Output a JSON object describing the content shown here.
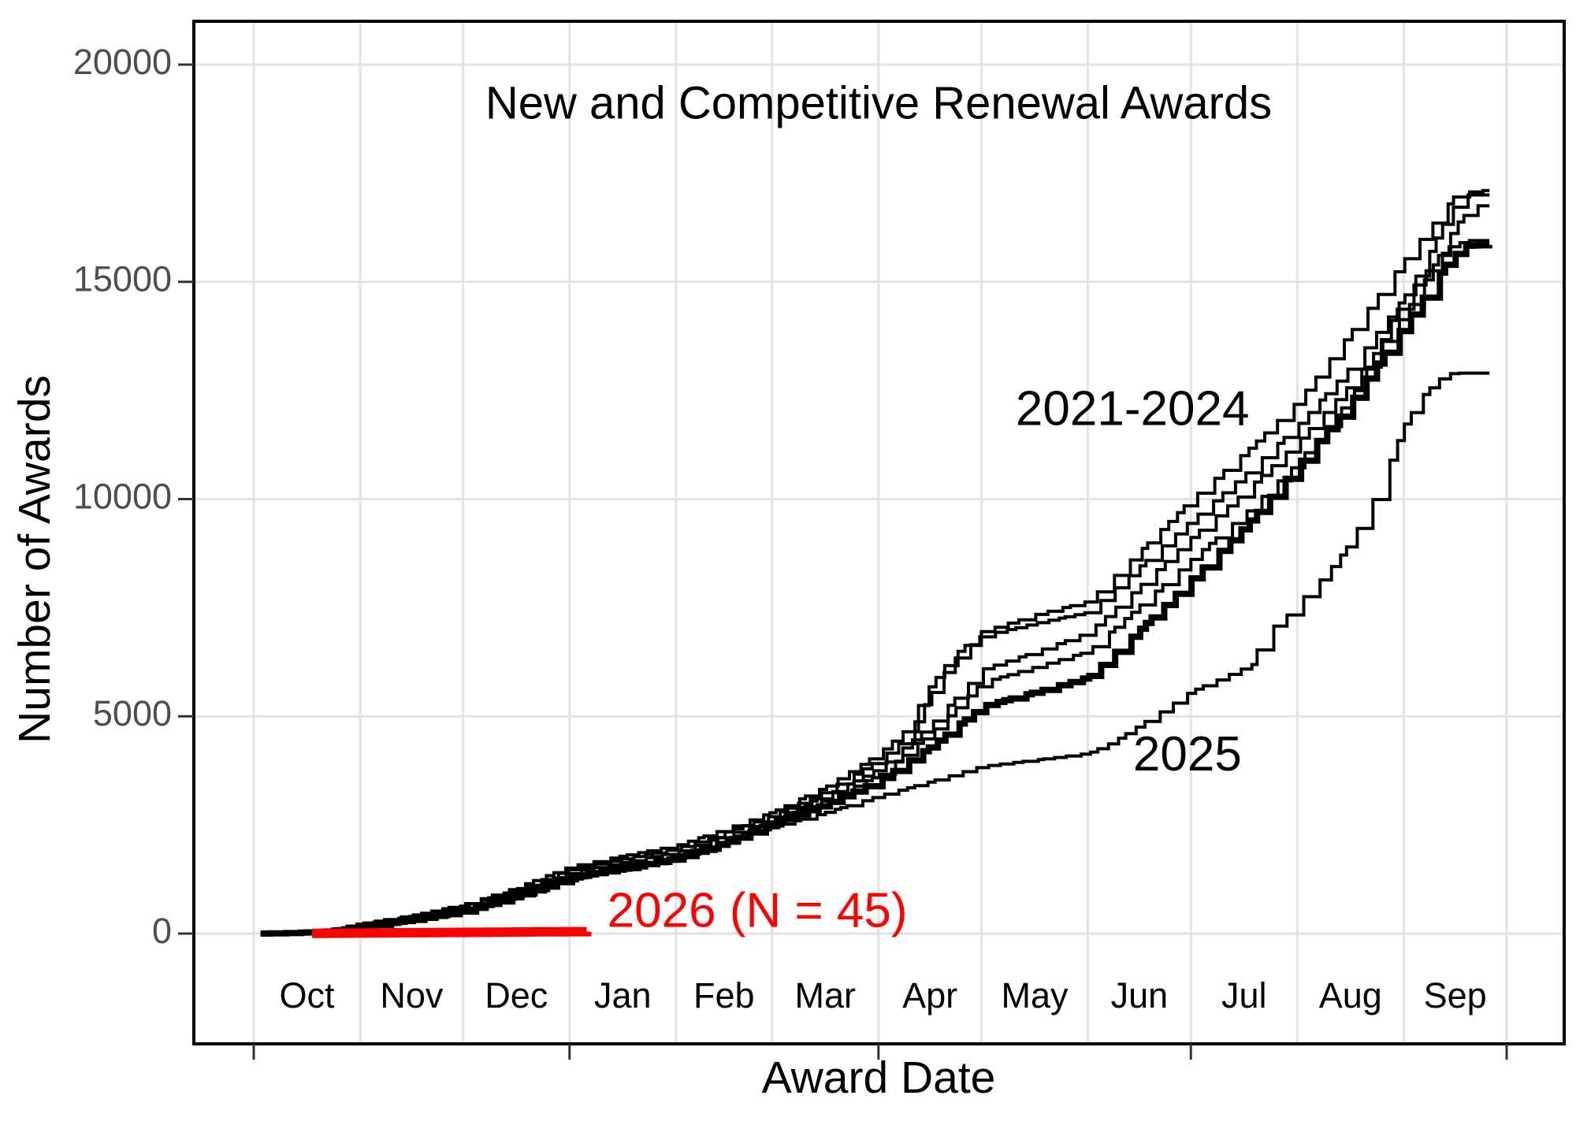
{
  "chart": {
    "title": "New and Competitive Renewal Awards",
    "x_axis_title": "Award Date",
    "y_axis_title": "Number of Awards"
  },
  "chart_data": {
    "type": "line",
    "title": "New and Competitive Renewal Awards",
    "xlabel": "Award Date",
    "ylabel": "Number of Awards",
    "x_unit": "days since Oct 1 (federal fiscal year)",
    "x_range_days": [
      0,
      365
    ],
    "ylim": [
      0,
      20000
    ],
    "grid": true,
    "legend": "none (direct line labels)",
    "y_ticks": [
      0,
      5000,
      10000,
      15000,
      20000
    ],
    "x_quarter_tick_days": [
      0,
      92,
      182,
      273,
      365
    ],
    "month_boundary_days": [
      0,
      31,
      61,
      92,
      123,
      151,
      182,
      212,
      243,
      273,
      304,
      335,
      365
    ],
    "month_labels": [
      {
        "label": "Oct",
        "mid_day": 15.5
      },
      {
        "label": "Nov",
        "mid_day": 46
      },
      {
        "label": "Dec",
        "mid_day": 76.5
      },
      {
        "label": "Jan",
        "mid_day": 107.5
      },
      {
        "label": "Feb",
        "mid_day": 137
      },
      {
        "label": "Mar",
        "mid_day": 166.5
      },
      {
        "label": "Apr",
        "mid_day": 197
      },
      {
        "label": "May",
        "mid_day": 227.5
      },
      {
        "label": "Jun",
        "mid_day": 258
      },
      {
        "label": "Jul",
        "mid_day": 288.5
      },
      {
        "label": "Aug",
        "mid_day": 319.5
      },
      {
        "label": "Sep",
        "mid_day": 350
      }
    ],
    "annotations": [
      {
        "text": "2021-2024",
        "x_day": 256,
        "y_value": 12000,
        "color": "#000000",
        "anchor": "middle",
        "font_size": 62
      },
      {
        "text": "2025",
        "x_day": 272,
        "y_value": 4050,
        "color": "#000000",
        "anchor": "middle",
        "font_size": 62
      },
      {
        "text": "2026 (N = 45)",
        "x_day": 103,
        "y_value": 450,
        "color": "#FF0000",
        "anchor": "start",
        "font_size": 62
      }
    ],
    "series": [
      {
        "name": "2021-2024 year line 1",
        "group_label": "2021-2024",
        "color": "#000000",
        "stroke_width": 4,
        "end_value": 17100,
        "points": [
          [
            2,
            0
          ],
          [
            12,
            30
          ],
          [
            22,
            90
          ],
          [
            31,
            230
          ],
          [
            46,
            420
          ],
          [
            61,
            670
          ],
          [
            76,
            1050
          ],
          [
            92,
            1540
          ],
          [
            108,
            1800
          ],
          [
            123,
            2030
          ],
          [
            137,
            2400
          ],
          [
            151,
            2800
          ],
          [
            167,
            3400
          ],
          [
            182,
            4150
          ],
          [
            190,
            4700
          ],
          [
            196,
            5600
          ],
          [
            203,
            6350
          ],
          [
            212,
            6950
          ],
          [
            228,
            7350
          ],
          [
            243,
            7650
          ],
          [
            258,
            8800
          ],
          [
            273,
            10000
          ],
          [
            289,
            11100
          ],
          [
            304,
            12250
          ],
          [
            320,
            13900
          ],
          [
            335,
            15500
          ],
          [
            343,
            16300
          ],
          [
            350,
            17000
          ],
          [
            356,
            17100
          ],
          [
            360,
            17100
          ]
        ]
      },
      {
        "name": "2021-2024 year line 2",
        "group_label": "2021-2024",
        "color": "#000000",
        "stroke_width": 4,
        "end_value": 17000,
        "points": [
          [
            2,
            0
          ],
          [
            12,
            25
          ],
          [
            22,
            80
          ],
          [
            31,
            210
          ],
          [
            46,
            400
          ],
          [
            61,
            640
          ],
          [
            76,
            1010
          ],
          [
            92,
            1480
          ],
          [
            108,
            1730
          ],
          [
            123,
            1960
          ],
          [
            137,
            2330
          ],
          [
            151,
            2720
          ],
          [
            167,
            3300
          ],
          [
            182,
            4000
          ],
          [
            190,
            4500
          ],
          [
            196,
            5350
          ],
          [
            203,
            6250
          ],
          [
            212,
            6860
          ],
          [
            228,
            7150
          ],
          [
            243,
            7400
          ],
          [
            258,
            8450
          ],
          [
            273,
            9510
          ],
          [
            289,
            10600
          ],
          [
            304,
            11700
          ],
          [
            320,
            13100
          ],
          [
            335,
            14650
          ],
          [
            342,
            15600
          ],
          [
            348,
            16600
          ],
          [
            353,
            17000
          ],
          [
            360,
            17000
          ]
        ]
      },
      {
        "name": "2021-2024 year line 3",
        "group_label": "2021-2024",
        "color": "#000000",
        "stroke_width": 4,
        "end_value": 16750,
        "points": [
          [
            2,
            0
          ],
          [
            12,
            20
          ],
          [
            22,
            70
          ],
          [
            31,
            190
          ],
          [
            46,
            370
          ],
          [
            61,
            600
          ],
          [
            76,
            950
          ],
          [
            92,
            1410
          ],
          [
            108,
            1650
          ],
          [
            123,
            1880
          ],
          [
            137,
            2250
          ],
          [
            151,
            2650
          ],
          [
            167,
            3200
          ],
          [
            182,
            3800
          ],
          [
            197,
            4800
          ],
          [
            212,
            6080
          ],
          [
            228,
            6500
          ],
          [
            243,
            6930
          ],
          [
            258,
            8000
          ],
          [
            273,
            9115
          ],
          [
            289,
            10200
          ],
          [
            304,
            11320
          ],
          [
            320,
            12700
          ],
          [
            335,
            14260
          ],
          [
            343,
            15300
          ],
          [
            350,
            16300
          ],
          [
            355,
            16750
          ],
          [
            360,
            16750
          ]
        ]
      },
      {
        "name": "2021-2024 year line 4",
        "group_label": "2021-2024",
        "color": "#000000",
        "stroke_width": 4,
        "end_value": 15950,
        "points": [
          [
            2,
            0
          ],
          [
            12,
            18
          ],
          [
            22,
            60
          ],
          [
            31,
            170
          ],
          [
            46,
            340
          ],
          [
            61,
            560
          ],
          [
            76,
            900
          ],
          [
            92,
            1350
          ],
          [
            108,
            1580
          ],
          [
            123,
            1800
          ],
          [
            137,
            2150
          ],
          [
            151,
            2600
          ],
          [
            167,
            3100
          ],
          [
            182,
            3650
          ],
          [
            197,
            4600
          ],
          [
            212,
            5780
          ],
          [
            228,
            6150
          ],
          [
            243,
            6500
          ],
          [
            258,
            7550
          ],
          [
            273,
            8610
          ],
          [
            289,
            9700
          ],
          [
            304,
            10850
          ],
          [
            320,
            12400
          ],
          [
            335,
            14650
          ],
          [
            342,
            15300
          ],
          [
            348,
            15800
          ],
          [
            353,
            15950
          ],
          [
            360,
            15950
          ]
        ]
      },
      {
        "name": "2021-2024 thick line",
        "group_label": "2021-2024",
        "color": "#000000",
        "stroke_width": 8,
        "end_value": 15850,
        "points": [
          [
            2,
            0
          ],
          [
            12,
            15
          ],
          [
            22,
            50
          ],
          [
            31,
            150
          ],
          [
            46,
            310
          ],
          [
            61,
            520
          ],
          [
            76,
            850
          ],
          [
            92,
            1280
          ],
          [
            108,
            1510
          ],
          [
            123,
            1730
          ],
          [
            137,
            2080
          ],
          [
            151,
            2530
          ],
          [
            167,
            3000
          ],
          [
            182,
            3520
          ],
          [
            197,
            4300
          ],
          [
            212,
            5230
          ],
          [
            228,
            5570
          ],
          [
            243,
            5900
          ],
          [
            258,
            7000
          ],
          [
            273,
            8160
          ],
          [
            289,
            9400
          ],
          [
            304,
            10780
          ],
          [
            320,
            12300
          ],
          [
            335,
            14000
          ],
          [
            342,
            14800
          ],
          [
            348,
            15500
          ],
          [
            353,
            15830
          ],
          [
            360,
            15850
          ]
        ]
      },
      {
        "name": "2025",
        "group_label": "2025",
        "color": "#000000",
        "stroke_width": 4,
        "end_value": 12900,
        "points": [
          [
            2,
            0
          ],
          [
            12,
            15
          ],
          [
            22,
            45
          ],
          [
            31,
            140
          ],
          [
            46,
            290
          ],
          [
            61,
            490
          ],
          [
            76,
            820
          ],
          [
            92,
            1250
          ],
          [
            108,
            1480
          ],
          [
            123,
            1700
          ],
          [
            137,
            2080
          ],
          [
            151,
            2450
          ],
          [
            167,
            2800
          ],
          [
            182,
            3170
          ],
          [
            197,
            3500
          ],
          [
            212,
            3850
          ],
          [
            228,
            4000
          ],
          [
            243,
            4150
          ],
          [
            250,
            4400
          ],
          [
            258,
            4800
          ],
          [
            266,
            5200
          ],
          [
            273,
            5580
          ],
          [
            281,
            5850
          ],
          [
            288,
            6100
          ],
          [
            291,
            6200
          ],
          [
            294,
            6950
          ],
          [
            299,
            7150
          ],
          [
            304,
            7600
          ],
          [
            312,
            8250
          ],
          [
            318,
            8850
          ],
          [
            325,
            9800
          ],
          [
            330,
            10700
          ],
          [
            335,
            11700
          ],
          [
            340,
            12350
          ],
          [
            345,
            12750
          ],
          [
            349,
            12900
          ],
          [
            360,
            12900
          ]
        ]
      },
      {
        "name": "2026",
        "group_label": "2026 (N = 45)",
        "color": "#FF0000",
        "stroke_width": 12,
        "end_value": 45,
        "points": [
          [
            17,
            5
          ],
          [
            30,
            12
          ],
          [
            45,
            20
          ],
          [
            61,
            28
          ],
          [
            75,
            36
          ],
          [
            90,
            43
          ],
          [
            97,
            45
          ]
        ]
      }
    ]
  },
  "layout_colors": {
    "background": "#FFFFFF",
    "panel_border": "#000000",
    "gridline": "#E2E2E2",
    "tick_mark": "#333333",
    "y_tick_label": "#4D4D4D",
    "x_month_label": "#000000",
    "title_text": "#000000",
    "accent_red": "#FF0000"
  }
}
